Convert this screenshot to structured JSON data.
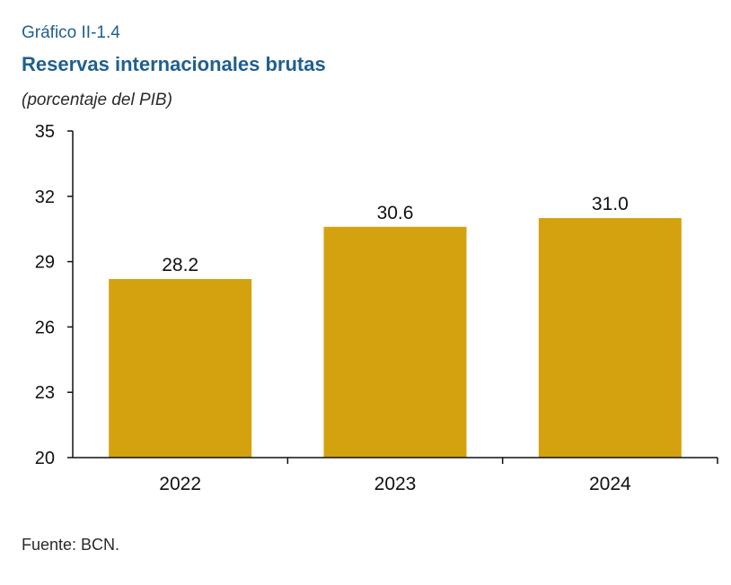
{
  "header": {
    "label": "Gráfico II-1.4",
    "title": "Reservas internacionales brutas",
    "subtitle": "(porcentaje del PIB)"
  },
  "chart_data": {
    "type": "bar",
    "categories": [
      "2022",
      "2023",
      "2024"
    ],
    "values": [
      28.2,
      30.6,
      31.0
    ],
    "value_labels": [
      "28.2",
      "30.6",
      "31.0"
    ],
    "ylim": [
      20,
      35
    ],
    "y_ticks": [
      "20",
      "23",
      "26",
      "29",
      "32",
      "35"
    ],
    "grid": false,
    "legend": "none",
    "bar_color": "#D4A10F"
  },
  "footer": {
    "source": "Fuente: BCN."
  }
}
